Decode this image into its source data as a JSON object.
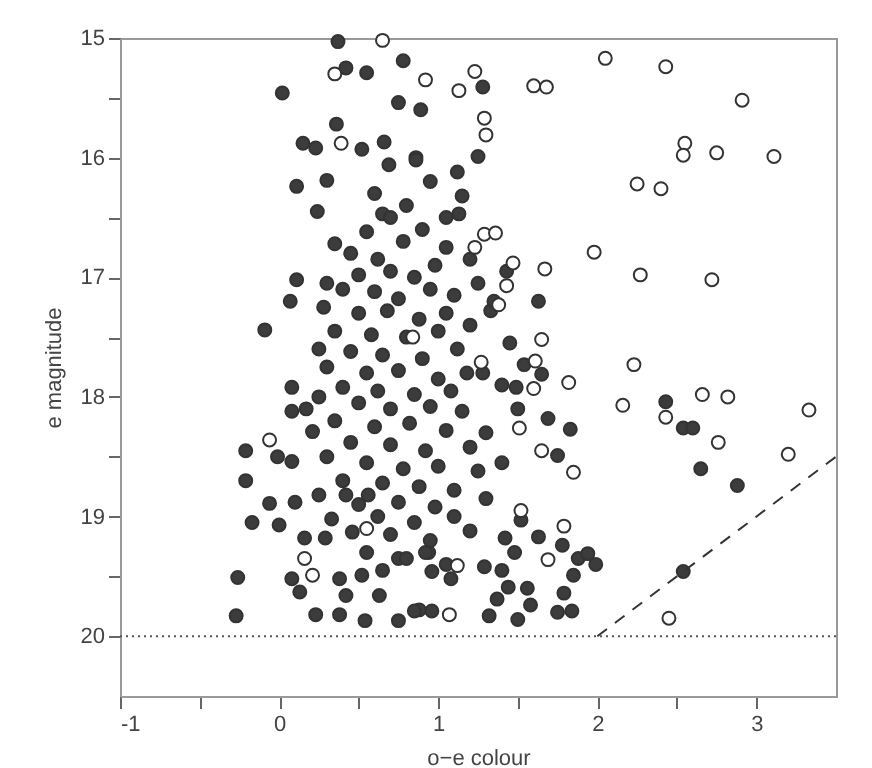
{
  "chart_data": {
    "type": "scatter",
    "xlabel": "o−e colour",
    "ylabel": "e magnitude",
    "xlim": [
      -1,
      3.5
    ],
    "ylim": [
      20.5,
      15
    ],
    "xticks": [
      -1,
      {
        "value": -0.5,
        "label": null
      },
      0,
      {
        "value": 0.5,
        "label": null
      },
      1,
      {
        "value": 1.5,
        "label": null
      },
      2,
      {
        "value": 2.5,
        "label": null
      },
      3
    ],
    "yticks": [
      15,
      {
        "value": 15.5,
        "label": null
      },
      16,
      {
        "value": 16.5,
        "label": null
      },
      17,
      {
        "value": 17.5,
        "label": null
      },
      18,
      {
        "value": 18.5,
        "label": null
      },
      19,
      {
        "value": 19.5,
        "label": null
      },
      20
    ],
    "grid": false,
    "marker": "circle",
    "ref_lines": [
      {
        "axis": "y",
        "value": 20,
        "color": "#555555",
        "line_style": "dotted"
      }
    ],
    "series": [
      {
        "color": "#3c3c3c",
        "x": [
          0.37,
          0.78,
          0.55,
          0.42,
          0.02,
          0.75,
          0.89,
          0.36,
          0.15,
          0.23,
          0.52,
          0.66,
          0.86,
          0.69,
          0.11,
          0.3,
          0.24,
          0.65,
          -0.09,
          0.07,
          0.11,
          1.25,
          1.28,
          0.86,
          1.12,
          1.15,
          1.13,
          1.63,
          1.43,
          1.33,
          1.28,
          1.54,
          1.65,
          1.49,
          2.43,
          2.54,
          2.6,
          2.65,
          2.88,
          2.54,
          1.69,
          1.83,
          1.75,
          1.63,
          1.78,
          1.88,
          1.99,
          1.94,
          1.85,
          1.79,
          1.75,
          1.84,
          1.58,
          1.5,
          1.32,
          1.37,
          1.56,
          1.44,
          1.29,
          1.4,
          1.52,
          1.42,
          1.48,
          0.96,
          1.08,
          0.94,
          0.88,
          -0.27,
          -0.26,
          -0.17,
          -0.21,
          -0.21,
          -0.06,
          -0.01,
          0.08,
          0.08,
          0.17,
          0.08,
          0.0,
          0.1,
          0.16,
          0.08,
          0.13,
          0.23,
          0.38,
          0.54,
          0.75,
          0.85,
          0.52,
          0.38,
          0.42,
          0.63,
          0.29,
          0.33,
          0.46,
          0.25,
          0.42,
          0.56,
          0.75,
          0.96,
          0.92,
          0.21,
          0.55,
          0.78,
          0.9,
          1.05,
          0.62,
          0.45,
          0.35,
          0.98,
          1.2,
          0.7,
          0.5,
          0.85,
          0.3,
          0.4,
          0.6,
          0.75,
          0.95,
          1.1,
          1.25,
          0.28,
          0.5,
          0.68,
          0.88,
          1.05,
          1.2,
          0.35,
          0.58,
          0.8,
          1.0,
          0.25,
          0.45,
          0.65,
          0.9,
          1.12,
          0.3,
          0.55,
          0.75,
          1.0,
          1.18,
          0.4,
          0.62,
          0.85,
          1.08,
          0.25,
          0.5,
          0.7,
          0.95,
          1.15,
          0.35,
          0.6,
          0.82,
          1.05,
          1.3,
          0.45,
          0.7,
          0.92,
          1.2,
          0.3,
          0.55,
          0.78,
          1.0,
          1.25,
          0.4,
          0.65,
          0.88,
          1.1,
          0.5,
          0.75,
          0.98,
          1.3,
          0.62,
          0.85,
          1.1,
          0.7,
          0.95,
          1.2,
          0.55,
          0.8,
          1.05,
          0.65,
          1.35,
          1.45,
          1.4,
          1.5,
          1.4,
          0.6,
          0.8,
          0.95,
          0.7,
          1.05
        ],
        "values": [
          15.03,
          15.19,
          15.29,
          15.25,
          15.46,
          15.54,
          15.6,
          15.72,
          15.88,
          15.92,
          15.93,
          15.87,
          16.0,
          16.06,
          16.24,
          16.19,
          16.45,
          16.47,
          17.44,
          17.2,
          17.02,
          15.99,
          15.41,
          16.02,
          16.12,
          16.32,
          16.47,
          17.2,
          16.95,
          17.28,
          17.8,
          17.73,
          17.81,
          17.92,
          18.04,
          18.26,
          18.26,
          18.6,
          18.74,
          19.46,
          18.18,
          18.27,
          18.49,
          19.17,
          19.24,
          19.35,
          19.4,
          19.31,
          19.49,
          19.64,
          19.8,
          19.79,
          19.74,
          19.86,
          19.83,
          19.69,
          19.6,
          19.59,
          19.42,
          19.45,
          19.03,
          19.18,
          19.3,
          19.79,
          19.52,
          19.3,
          19.78,
          19.83,
          19.51,
          19.05,
          18.7,
          18.45,
          18.89,
          18.5,
          18.54,
          17.92,
          18.1,
          18.12,
          19.07,
          18.88,
          19.18,
          19.52,
          19.63,
          19.82,
          19.82,
          19.87,
          19.87,
          19.79,
          19.49,
          19.52,
          19.66,
          19.66,
          19.18,
          19.02,
          19.13,
          18.82,
          18.82,
          18.82,
          19.35,
          19.46,
          19.3,
          18.29,
          16.62,
          16.7,
          16.6,
          16.75,
          16.85,
          16.8,
          16.72,
          16.9,
          16.85,
          16.95,
          16.98,
          17.0,
          17.05,
          17.1,
          17.12,
          17.18,
          17.1,
          17.15,
          17.05,
          17.25,
          17.3,
          17.28,
          17.35,
          17.3,
          17.4,
          17.45,
          17.48,
          17.5,
          17.45,
          17.6,
          17.62,
          17.65,
          17.68,
          17.6,
          17.75,
          17.8,
          17.78,
          17.85,
          17.8,
          17.92,
          17.95,
          17.98,
          17.95,
          18.0,
          18.05,
          18.1,
          18.08,
          18.12,
          18.2,
          18.25,
          18.22,
          18.28,
          18.3,
          18.38,
          18.4,
          18.45,
          18.42,
          18.5,
          18.55,
          18.6,
          18.58,
          18.62,
          18.7,
          18.72,
          18.75,
          18.78,
          18.9,
          18.88,
          18.92,
          18.85,
          19.0,
          19.05,
          19.0,
          19.15,
          19.2,
          19.12,
          19.3,
          19.35,
          19.4,
          19.45,
          17.2,
          17.55,
          17.9,
          18.1,
          18.55,
          16.3,
          16.4,
          16.2,
          16.5,
          16.5
        ]
      },
      {
        "color": "#ffffff",
        "x": [
          2.05,
          2.43,
          2.91,
          2.55,
          2.54,
          2.75,
          3.11,
          2.25,
          2.4,
          1.98,
          1.67,
          2.27,
          2.72,
          1.65,
          2.23,
          1.6,
          1.68,
          1.29,
          1.3,
          1.23,
          1.13,
          0.92,
          1.29,
          1.36,
          1.23,
          1.47,
          1.43,
          1.38,
          1.61,
          1.27,
          1.6,
          1.82,
          2.66,
          2.82,
          2.16,
          2.43,
          3.33,
          2.76,
          3.2,
          1.51,
          1.65,
          1.85,
          1.52,
          1.79,
          1.69,
          1.12,
          1.07,
          2.45,
          0.65,
          0.35,
          0.39,
          0.84,
          -0.06,
          0.16,
          0.21,
          0.55
        ],
        "values": [
          15.17,
          15.24,
          15.52,
          15.88,
          15.98,
          15.96,
          15.99,
          16.22,
          16.26,
          16.79,
          16.93,
          16.98,
          17.02,
          17.52,
          17.73,
          15.4,
          15.41,
          15.67,
          15.81,
          15.28,
          15.44,
          15.35,
          16.64,
          16.63,
          16.75,
          16.88,
          17.07,
          17.23,
          17.7,
          17.71,
          17.93,
          17.88,
          17.98,
          18.0,
          18.07,
          18.17,
          18.11,
          18.38,
          18.48,
          18.26,
          18.45,
          18.63,
          18.95,
          19.08,
          19.36,
          19.41,
          19.82,
          19.85,
          15.02,
          15.3,
          15.88,
          17.5,
          18.36,
          19.35,
          19.49,
          19.1
        ]
      },
      {
        "type": "line",
        "color": "#333333",
        "line_style": "dashed",
        "marker": "none",
        "x": [
          2,
          3.5
        ],
        "values": [
          20,
          18.5
        ]
      }
    ]
  }
}
